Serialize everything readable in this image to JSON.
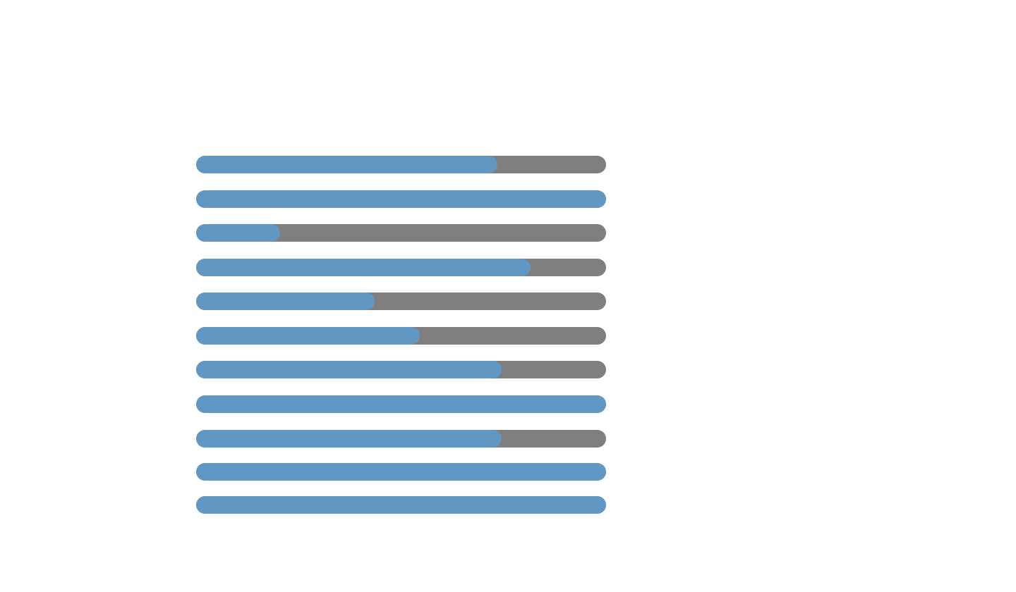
{
  "colors": {
    "fill": "#6198c3",
    "track": "#7f7f7f",
    "background": "#ffffff"
  },
  "progress_bars": [
    {
      "fraction": 0.735
    },
    {
      "fraction": 1.0
    },
    {
      "fraction": 0.205
    },
    {
      "fraction": 0.815
    },
    {
      "fraction": 0.435
    },
    {
      "fraction": 0.545
    },
    {
      "fraction": 0.745
    },
    {
      "fraction": 1.0
    },
    {
      "fraction": 0.745
    },
    {
      "fraction": 1.0
    },
    {
      "fraction": 1.0
    }
  ]
}
